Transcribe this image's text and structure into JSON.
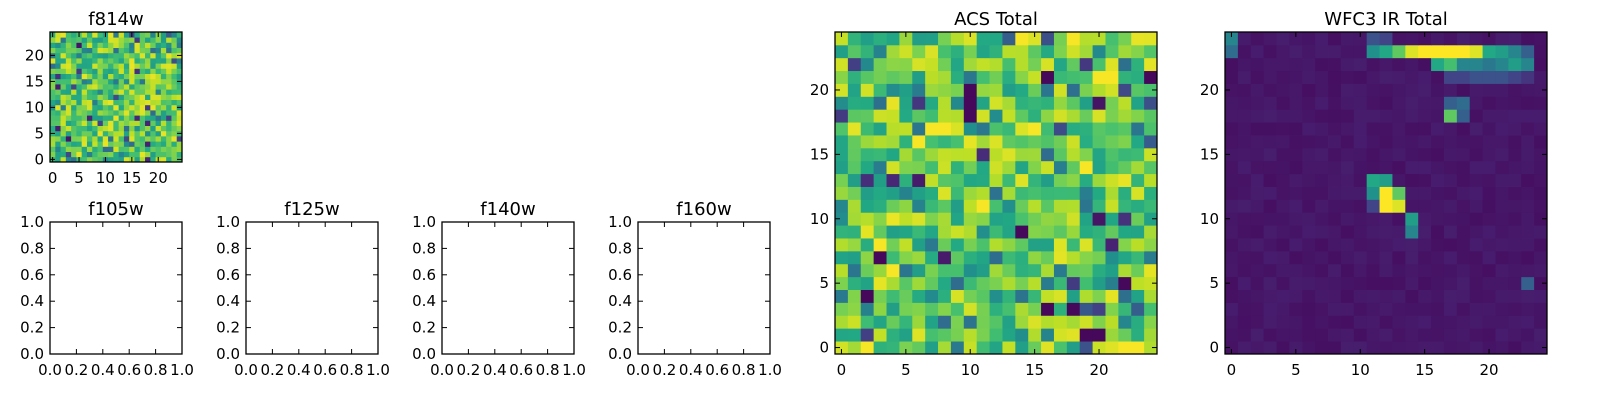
{
  "chart_data": [
    {
      "id": "f814w",
      "type": "heatmap",
      "title": "f814w",
      "colormap": "viridis",
      "grid_size": [
        25,
        25
      ],
      "xlim": [
        -0.5,
        24.5
      ],
      "ylim": [
        -0.5,
        24.5
      ],
      "xticks": [
        0,
        5,
        10,
        15,
        20
      ],
      "yticks": [
        0,
        5,
        10,
        15,
        20
      ],
      "xtick_labels": [
        "0",
        "5",
        "10",
        "15",
        "20"
      ],
      "ytick_labels": [
        "0",
        "5",
        "10",
        "15",
        "20"
      ],
      "pattern": "noise",
      "seed": 11
    },
    {
      "id": "f105w",
      "type": "heatmap",
      "title": "f105w",
      "empty": true,
      "xlim": [
        0,
        1
      ],
      "ylim": [
        0,
        1
      ],
      "xticks": [
        0,
        0.2,
        0.4,
        0.6,
        0.8,
        1.0
      ],
      "yticks": [
        0,
        0.2,
        0.4,
        0.6,
        0.8,
        1.0
      ],
      "xtick_labels": [
        "0.0",
        "0.2",
        "0.4",
        "0.6",
        "0.8",
        "1.0"
      ],
      "ytick_labels": [
        "0.0",
        "0.2",
        "0.4",
        "0.6",
        "0.8",
        "1.0"
      ]
    },
    {
      "id": "f125w",
      "type": "heatmap",
      "title": "f125w",
      "empty": true,
      "xlim": [
        0,
        1
      ],
      "ylim": [
        0,
        1
      ],
      "xticks": [
        0,
        0.2,
        0.4,
        0.6,
        0.8,
        1.0
      ],
      "yticks": [
        0,
        0.2,
        0.4,
        0.6,
        0.8,
        1.0
      ],
      "xtick_labels": [
        "0.0",
        "0.2",
        "0.4",
        "0.6",
        "0.8",
        "1.0"
      ],
      "ytick_labels": [
        "0.0",
        "0.2",
        "0.4",
        "0.6",
        "0.8",
        "1.0"
      ]
    },
    {
      "id": "f140w",
      "type": "heatmap",
      "title": "f140w",
      "empty": true,
      "xlim": [
        0,
        1
      ],
      "ylim": [
        0,
        1
      ],
      "xticks": [
        0,
        0.2,
        0.4,
        0.6,
        0.8,
        1.0
      ],
      "yticks": [
        0,
        0.2,
        0.4,
        0.6,
        0.8,
        1.0
      ],
      "xtick_labels": [
        "0.0",
        "0.2",
        "0.4",
        "0.6",
        "0.8",
        "1.0"
      ],
      "ytick_labels": [
        "0.0",
        "0.2",
        "0.4",
        "0.6",
        "0.8",
        "1.0"
      ]
    },
    {
      "id": "f160w",
      "type": "heatmap",
      "title": "f160w",
      "empty": true,
      "xlim": [
        0,
        1
      ],
      "ylim": [
        0,
        1
      ],
      "xticks": [
        0,
        0.2,
        0.4,
        0.6,
        0.8,
        1.0
      ],
      "yticks": [
        0,
        0.2,
        0.4,
        0.6,
        0.8,
        1.0
      ],
      "xtick_labels": [
        "0.0",
        "0.2",
        "0.4",
        "0.6",
        "0.8",
        "1.0"
      ],
      "ytick_labels": [
        "0.0",
        "0.2",
        "0.4",
        "0.6",
        "0.8",
        "1.0"
      ]
    },
    {
      "id": "acs",
      "type": "heatmap",
      "title": "ACS Total",
      "colormap": "viridis",
      "grid_size": [
        25,
        25
      ],
      "xlim": [
        -0.5,
        24.5
      ],
      "ylim": [
        -0.5,
        24.5
      ],
      "xticks": [
        0,
        5,
        10,
        15,
        20
      ],
      "yticks": [
        0,
        5,
        10,
        15,
        20
      ],
      "xtick_labels": [
        "0",
        "5",
        "10",
        "15",
        "20"
      ],
      "ytick_labels": [
        "0",
        "5",
        "10",
        "15",
        "20"
      ],
      "pattern": "noise",
      "seed": 29,
      "low_cells": [
        [
          10,
          20
        ],
        [
          10,
          19
        ],
        [
          10,
          18
        ],
        [
          16,
          21
        ],
        [
          24,
          21
        ],
        [
          18,
          3
        ],
        [
          16,
          3
        ],
        [
          19,
          1
        ],
        [
          20,
          1
        ],
        [
          3,
          7
        ],
        [
          14,
          9
        ],
        [
          22,
          5
        ],
        [
          2,
          4
        ]
      ],
      "high_cells": [
        [
          18,
          24
        ],
        [
          14,
          24
        ],
        [
          20,
          21
        ],
        [
          21,
          21
        ],
        [
          7,
          17
        ],
        [
          8,
          17
        ],
        [
          6,
          16
        ],
        [
          15,
          17
        ],
        [
          19,
          14
        ],
        [
          3,
          8
        ],
        [
          4,
          6
        ],
        [
          11,
          11
        ],
        [
          22,
          0
        ],
        [
          23,
          0
        ],
        [
          2,
          0
        ]
      ]
    },
    {
      "id": "wfc3",
      "type": "heatmap",
      "title": "WFC3 IR Total",
      "colormap": "viridis",
      "grid_size": [
        25,
        25
      ],
      "xlim": [
        -0.5,
        24.5
      ],
      "ylim": [
        -0.5,
        24.5
      ],
      "xticks": [
        0,
        5,
        10,
        15,
        20
      ],
      "yticks": [
        0,
        5,
        10,
        15,
        20
      ],
      "xtick_labels": [
        "0",
        "5",
        "10",
        "15",
        "20"
      ],
      "ytick_labels": [
        "0",
        "5",
        "10",
        "15",
        "20"
      ],
      "pattern": "sources",
      "background": 0.06,
      "cells": [
        [
          0,
          24,
          0.45
        ],
        [
          0,
          23,
          0.35
        ],
        [
          11,
          23,
          0.5
        ],
        [
          12,
          23,
          0.6
        ],
        [
          13,
          23,
          0.75
        ],
        [
          14,
          23,
          0.95
        ],
        [
          15,
          23,
          1.0
        ],
        [
          16,
          23,
          1.0
        ],
        [
          17,
          23,
          1.0
        ],
        [
          18,
          23,
          1.0
        ],
        [
          19,
          23,
          0.95
        ],
        [
          20,
          23,
          0.6
        ],
        [
          21,
          23,
          0.55
        ],
        [
          22,
          23,
          0.45
        ],
        [
          23,
          23,
          0.3
        ],
        [
          11,
          24,
          0.25
        ],
        [
          12,
          24,
          0.2
        ],
        [
          16,
          22,
          0.6
        ],
        [
          17,
          22,
          0.7
        ],
        [
          18,
          22,
          0.45
        ],
        [
          19,
          22,
          0.45
        ],
        [
          20,
          22,
          0.4
        ],
        [
          21,
          22,
          0.45
        ],
        [
          22,
          22,
          0.55
        ],
        [
          23,
          22,
          0.45
        ],
        [
          17,
          21,
          0.2
        ],
        [
          18,
          21,
          0.2
        ],
        [
          19,
          21,
          0.25
        ],
        [
          20,
          21,
          0.25
        ],
        [
          21,
          21,
          0.25
        ],
        [
          22,
          21,
          0.2
        ],
        [
          23,
          21,
          0.15
        ],
        [
          17,
          19,
          0.3
        ],
        [
          18,
          19,
          0.35
        ],
        [
          17,
          18,
          0.75
        ],
        [
          18,
          18,
          0.3
        ],
        [
          11,
          13,
          0.6
        ],
        [
          12,
          13,
          0.55
        ],
        [
          11,
          12,
          0.5
        ],
        [
          12,
          12,
          1.0
        ],
        [
          13,
          12,
          0.75
        ],
        [
          12,
          11,
          1.0
        ],
        [
          13,
          11,
          0.95
        ],
        [
          11,
          11,
          0.2
        ],
        [
          14,
          10,
          0.55
        ],
        [
          14,
          9,
          0.45
        ],
        [
          23,
          5,
          0.3
        ]
      ]
    }
  ]
}
